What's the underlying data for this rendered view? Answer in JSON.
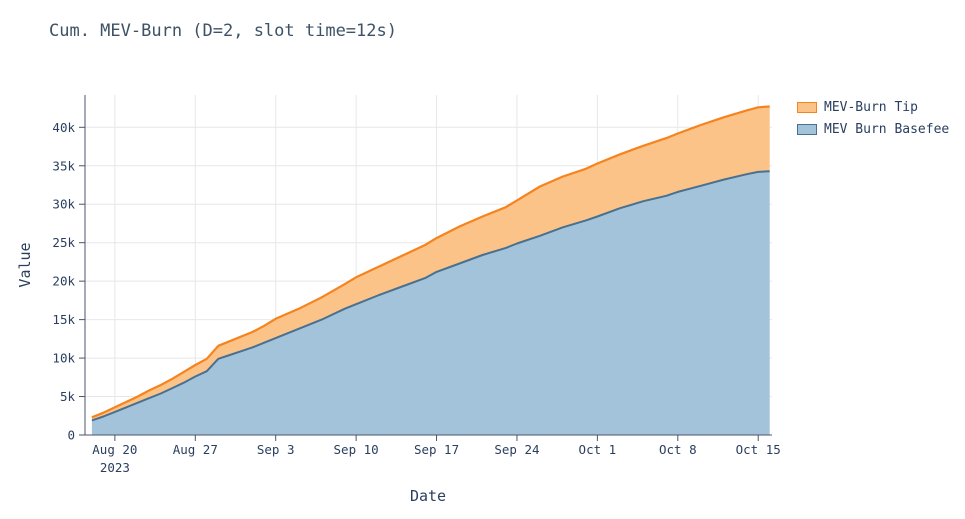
{
  "chart_data": {
    "type": "area",
    "title": "Cum. MEV-Burn (D=2, slot time=12s)",
    "xlabel": "Date",
    "ylabel": "Value",
    "legend_position": "top-right",
    "grid": true,
    "x_unit": "days since 2023-08-18",
    "xlim": [
      -0.6,
      59.2
    ],
    "ylim": [
      0,
      44200
    ],
    "x_ticks": [
      {
        "day": 2,
        "label": "Aug 20"
      },
      {
        "day": 9,
        "label": "Aug 27"
      },
      {
        "day": 16,
        "label": "Sep 3"
      },
      {
        "day": 23,
        "label": "Sep 10"
      },
      {
        "day": 30,
        "label": "Sep 17"
      },
      {
        "day": 37,
        "label": "Sep 24"
      },
      {
        "day": 44,
        "label": "Oct 1"
      },
      {
        "day": 51,
        "label": "Oct 8"
      },
      {
        "day": 58,
        "label": "Oct 15"
      }
    ],
    "year_tick": {
      "day": 2,
      "label": "2023"
    },
    "y_ticks": [
      {
        "value": 0,
        "label": "0"
      },
      {
        "value": 5000,
        "label": "5k"
      },
      {
        "value": 10000,
        "label": "10k"
      },
      {
        "value": 15000,
        "label": "15k"
      },
      {
        "value": 20000,
        "label": "20k"
      },
      {
        "value": 25000,
        "label": "25k"
      },
      {
        "value": 30000,
        "label": "30k"
      },
      {
        "value": 35000,
        "label": "35k"
      },
      {
        "value": 40000,
        "label": "40k"
      }
    ],
    "days": [
      0,
      1,
      2,
      3,
      4,
      5,
      6,
      7,
      8,
      9,
      10,
      11,
      12,
      13,
      14,
      15,
      16,
      18,
      20,
      22,
      23,
      25,
      27,
      29,
      30,
      32,
      34,
      36,
      37,
      39,
      41,
      43,
      44,
      46,
      48,
      50,
      51,
      53,
      55,
      57,
      58,
      59
    ],
    "series": [
      {
        "name": "MEV-Burn Tip",
        "stacking": "on top of MEV Burn Basefee",
        "line_color": "#f5831e",
        "fill_color": "#fcc389",
        "values": [
          400,
          500,
          600,
          700,
          800,
          1000,
          1100,
          1200,
          1400,
          1500,
          1600,
          1700,
          1800,
          1900,
          2000,
          2200,
          2500,
          2600,
          2900,
          3200,
          3500,
          3700,
          4000,
          4300,
          4400,
          4800,
          5000,
          5300,
          5600,
          6400,
          6600,
          6700,
          6900,
          7000,
          7200,
          7500,
          7600,
          7900,
          8100,
          8300,
          8400,
          8400
        ]
      },
      {
        "name": "MEV Burn Basefee",
        "stacking": "base",
        "line_color": "#49708f",
        "fill_color": "#a3c3db",
        "values": [
          1900,
          2400,
          3000,
          3600,
          4200,
          4800,
          5400,
          6100,
          6800,
          7600,
          8300,
          9900,
          10400,
          10900,
          11400,
          12000,
          12600,
          13800,
          15000,
          16400,
          17000,
          18200,
          19300,
          20400,
          21200,
          22300,
          23400,
          24300,
          24900,
          25900,
          27000,
          27900,
          28400,
          29500,
          30400,
          31100,
          31600,
          32400,
          33200,
          33900,
          34200,
          34300
        ]
      }
    ],
    "style": {
      "grid_color": "#e5e7e9",
      "axis_color": "#4a5568",
      "tick_label_color": "#2a3f5f",
      "title_color": "#3d5266",
      "plot_bg": "#ffffff"
    }
  }
}
